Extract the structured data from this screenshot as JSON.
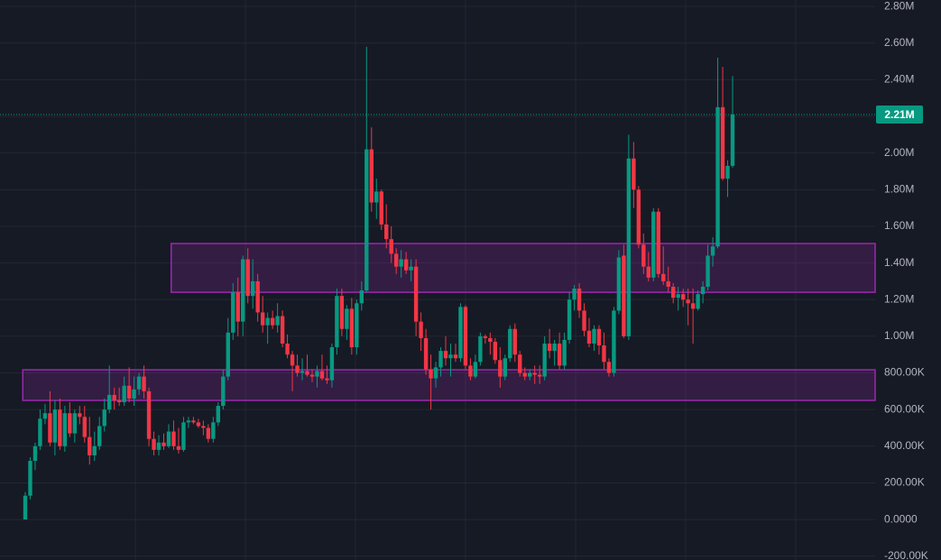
{
  "chart_data": {
    "type": "candlestick",
    "up_color": "#089981",
    "down_color": "#f23645",
    "open": [
      0,
      130000,
      320000,
      400000,
      550000,
      580000,
      420000,
      600000,
      400000,
      580000,
      470000,
      580000,
      560000,
      450000,
      350000,
      400000,
      510000,
      600000,
      680000,
      650000,
      640000,
      730000,
      660000,
      710000,
      780000,
      700000,
      440000,
      380000,
      420000,
      400000,
      480000,
      400000,
      380000,
      530000,
      540000,
      530000,
      510000,
      500000,
      440000,
      530000,
      620000,
      780000,
      1020000,
      1240000,
      1080000,
      1420000,
      1220000,
      1300000,
      1130000,
      1060000,
      1100000,
      1060000,
      1110000,
      960000,
      900000,
      840000,
      800000,
      810000,
      790000,
      780000,
      810000,
      770000,
      760000,
      940000,
      1220000,
      1040000,
      1150000,
      940000,
      1180000,
      1250000,
      2020000,
      1730000,
      1790000,
      1610000,
      1530000,
      1450000,
      1380000,
      1420000,
      1360000,
      1380000,
      1080000,
      990000,
      820000,
      770000,
      830000,
      920000,
      880000,
      900000,
      880000,
      1160000,
      840000,
      780000,
      860000,
      1000000,
      990000,
      970000,
      870000,
      780000,
      880000,
      1040000,
      900000,
      800000,
      780000,
      800000,
      790000,
      780000,
      960000,
      920000,
      960000,
      840000,
      980000,
      1200000,
      1260000,
      1140000,
      1030000,
      960000,
      1040000,
      950000,
      860000,
      800000,
      1140000,
      1440000,
      1000000,
      1970000,
      1800000,
      1500000,
      1380000,
      1320000,
      1680000,
      1340000,
      1300000,
      1270000,
      1210000,
      1230000,
      1200000,
      1180000,
      1150000,
      1230000,
      1270000,
      1440000,
      1490000,
      2250000,
      1860000,
      1930000
    ],
    "high": [
      150000,
      340000,
      420000,
      600000,
      630000,
      700000,
      650000,
      660000,
      620000,
      640000,
      600000,
      620000,
      620000,
      560000,
      480000,
      560000,
      660000,
      840000,
      720000,
      720000,
      780000,
      830000,
      780000,
      800000,
      840000,
      720000,
      480000,
      460000,
      470000,
      520000,
      540000,
      500000,
      560000,
      560000,
      560000,
      550000,
      540000,
      520000,
      560000,
      640000,
      820000,
      1100000,
      1290000,
      1320000,
      1440000,
      1480000,
      1420000,
      1340000,
      1220000,
      1130000,
      1140000,
      1180000,
      1140000,
      1010000,
      920000,
      900000,
      880000,
      900000,
      820000,
      840000,
      900000,
      840000,
      960000,
      1260000,
      1260000,
      1170000,
      1210000,
      1200000,
      1300000,
      2580000,
      2140000,
      1860000,
      1800000,
      1720000,
      1600000,
      1480000,
      1470000,
      1460000,
      1420000,
      1420000,
      1130000,
      1040000,
      900000,
      860000,
      940000,
      1000000,
      960000,
      960000,
      1180000,
      1170000,
      880000,
      900000,
      1020000,
      1010000,
      1020000,
      990000,
      940000,
      900000,
      1060000,
      1070000,
      920000,
      830000,
      820000,
      840000,
      840000,
      1000000,
      1040000,
      980000,
      1020000,
      1020000,
      1240000,
      1280000,
      1290000,
      1180000,
      1100000,
      1060000,
      1060000,
      1020000,
      880000,
      1160000,
      1470000,
      1500000,
      2100000,
      2060000,
      1820000,
      1560000,
      1460000,
      1700000,
      1700000,
      1490000,
      1380000,
      1290000,
      1270000,
      1260000,
      1260000,
      1260000,
      1250000,
      1300000,
      1500000,
      1540000,
      2520000,
      2470000,
      1960000,
      2420000
    ],
    "low": [
      0,
      110000,
      270000,
      380000,
      520000,
      400000,
      350000,
      380000,
      370000,
      450000,
      420000,
      520000,
      420000,
      300000,
      320000,
      380000,
      480000,
      580000,
      600000,
      620000,
      620000,
      640000,
      620000,
      680000,
      660000,
      400000,
      350000,
      350000,
      380000,
      390000,
      380000,
      360000,
      370000,
      500000,
      520000,
      500000,
      460000,
      420000,
      420000,
      510000,
      600000,
      760000,
      980000,
      1000000,
      1000000,
      1180000,
      1150000,
      1080000,
      1020000,
      960000,
      1040000,
      1020000,
      940000,
      880000,
      700000,
      780000,
      760000,
      780000,
      750000,
      720000,
      760000,
      740000,
      720000,
      900000,
      1000000,
      980000,
      900000,
      900000,
      1140000,
      1240000,
      1680000,
      1640000,
      1580000,
      1480000,
      1400000,
      1340000,
      1320000,
      1340000,
      1300000,
      1000000,
      920000,
      790000,
      600000,
      720000,
      780000,
      840000,
      780000,
      860000,
      860000,
      820000,
      760000,
      770000,
      840000,
      960000,
      900000,
      850000,
      720000,
      760000,
      860000,
      860000,
      780000,
      760000,
      760000,
      740000,
      740000,
      760000,
      880000,
      840000,
      820000,
      820000,
      960000,
      1140000,
      1100000,
      1000000,
      940000,
      920000,
      900000,
      820000,
      780000,
      780000,
      1120000,
      990000,
      980000,
      1700000,
      1480000,
      1340000,
      1300000,
      1300000,
      1320000,
      1280000,
      1240000,
      1180000,
      1140000,
      1160000,
      1060000,
      960000,
      1140000,
      1180000,
      1250000,
      1380000,
      1480000,
      1850000,
      1760000,
      1920000
    ],
    "close": [
      130000,
      320000,
      400000,
      550000,
      580000,
      420000,
      600000,
      400000,
      580000,
      470000,
      580000,
      560000,
      450000,
      350000,
      400000,
      510000,
      600000,
      680000,
      650000,
      640000,
      730000,
      660000,
      710000,
      780000,
      700000,
      440000,
      380000,
      420000,
      400000,
      480000,
      400000,
      380000,
      530000,
      540000,
      530000,
      510000,
      500000,
      440000,
      530000,
      620000,
      780000,
      1020000,
      1240000,
      1080000,
      1420000,
      1220000,
      1300000,
      1130000,
      1060000,
      1100000,
      1060000,
      1110000,
      960000,
      900000,
      840000,
      800000,
      810000,
      790000,
      780000,
      810000,
      770000,
      760000,
      940000,
      1220000,
      1040000,
      1150000,
      940000,
      1180000,
      1250000,
      2020000,
      1730000,
      1790000,
      1610000,
      1530000,
      1450000,
      1380000,
      1420000,
      1360000,
      1380000,
      1080000,
      990000,
      820000,
      770000,
      830000,
      920000,
      880000,
      900000,
      880000,
      1160000,
      840000,
      780000,
      860000,
      1000000,
      990000,
      970000,
      870000,
      780000,
      880000,
      1040000,
      900000,
      800000,
      780000,
      800000,
      790000,
      780000,
      960000,
      920000,
      960000,
      840000,
      980000,
      1200000,
      1260000,
      1140000,
      1030000,
      960000,
      1040000,
      950000,
      860000,
      800000,
      1140000,
      1430000,
      1000000,
      1970000,
      1800000,
      1500000,
      1380000,
      1320000,
      1680000,
      1340000,
      1300000,
      1270000,
      1210000,
      1230000,
      1200000,
      1180000,
      1150000,
      1230000,
      1270000,
      1440000,
      1490000,
      2250000,
      1860000,
      1930000,
      2210000
    ],
    "zones": [
      {
        "low": 650000,
        "high": 817000,
        "start": 0,
        "color": "#9c27b0"
      },
      {
        "low": 1240000,
        "high": 1506000,
        "start": 30,
        "color": "#9c27b0"
      }
    ],
    "last_price": {
      "value": 2210000,
      "label": "2.21M"
    },
    "ylim": [
      -221000,
      2835000
    ],
    "yticks": [
      {
        "value": -200000,
        "label": "-200.00K"
      },
      {
        "value": 0,
        "label": "0.0000"
      },
      {
        "value": 200000,
        "label": "200.00K"
      },
      {
        "value": 400000,
        "label": "400.00K"
      },
      {
        "value": 600000,
        "label": "600.00K"
      },
      {
        "value": 800000,
        "label": "800.00K"
      },
      {
        "value": 1000000,
        "label": "1.00M"
      },
      {
        "value": 1200000,
        "label": "1.20M"
      },
      {
        "value": 1400000,
        "label": "1.40M"
      },
      {
        "value": 1600000,
        "label": "1.60M"
      },
      {
        "value": 1800000,
        "label": "1.80M"
      },
      {
        "value": 2000000,
        "label": "2.00M"
      },
      {
        "value": 2200000,
        "label": "2.20M"
      },
      {
        "value": 2400000,
        "label": "2.40M"
      },
      {
        "value": 2600000,
        "label": "2.60M"
      },
      {
        "value": 2800000,
        "label": "2.80M"
      }
    ],
    "grid": true
  }
}
